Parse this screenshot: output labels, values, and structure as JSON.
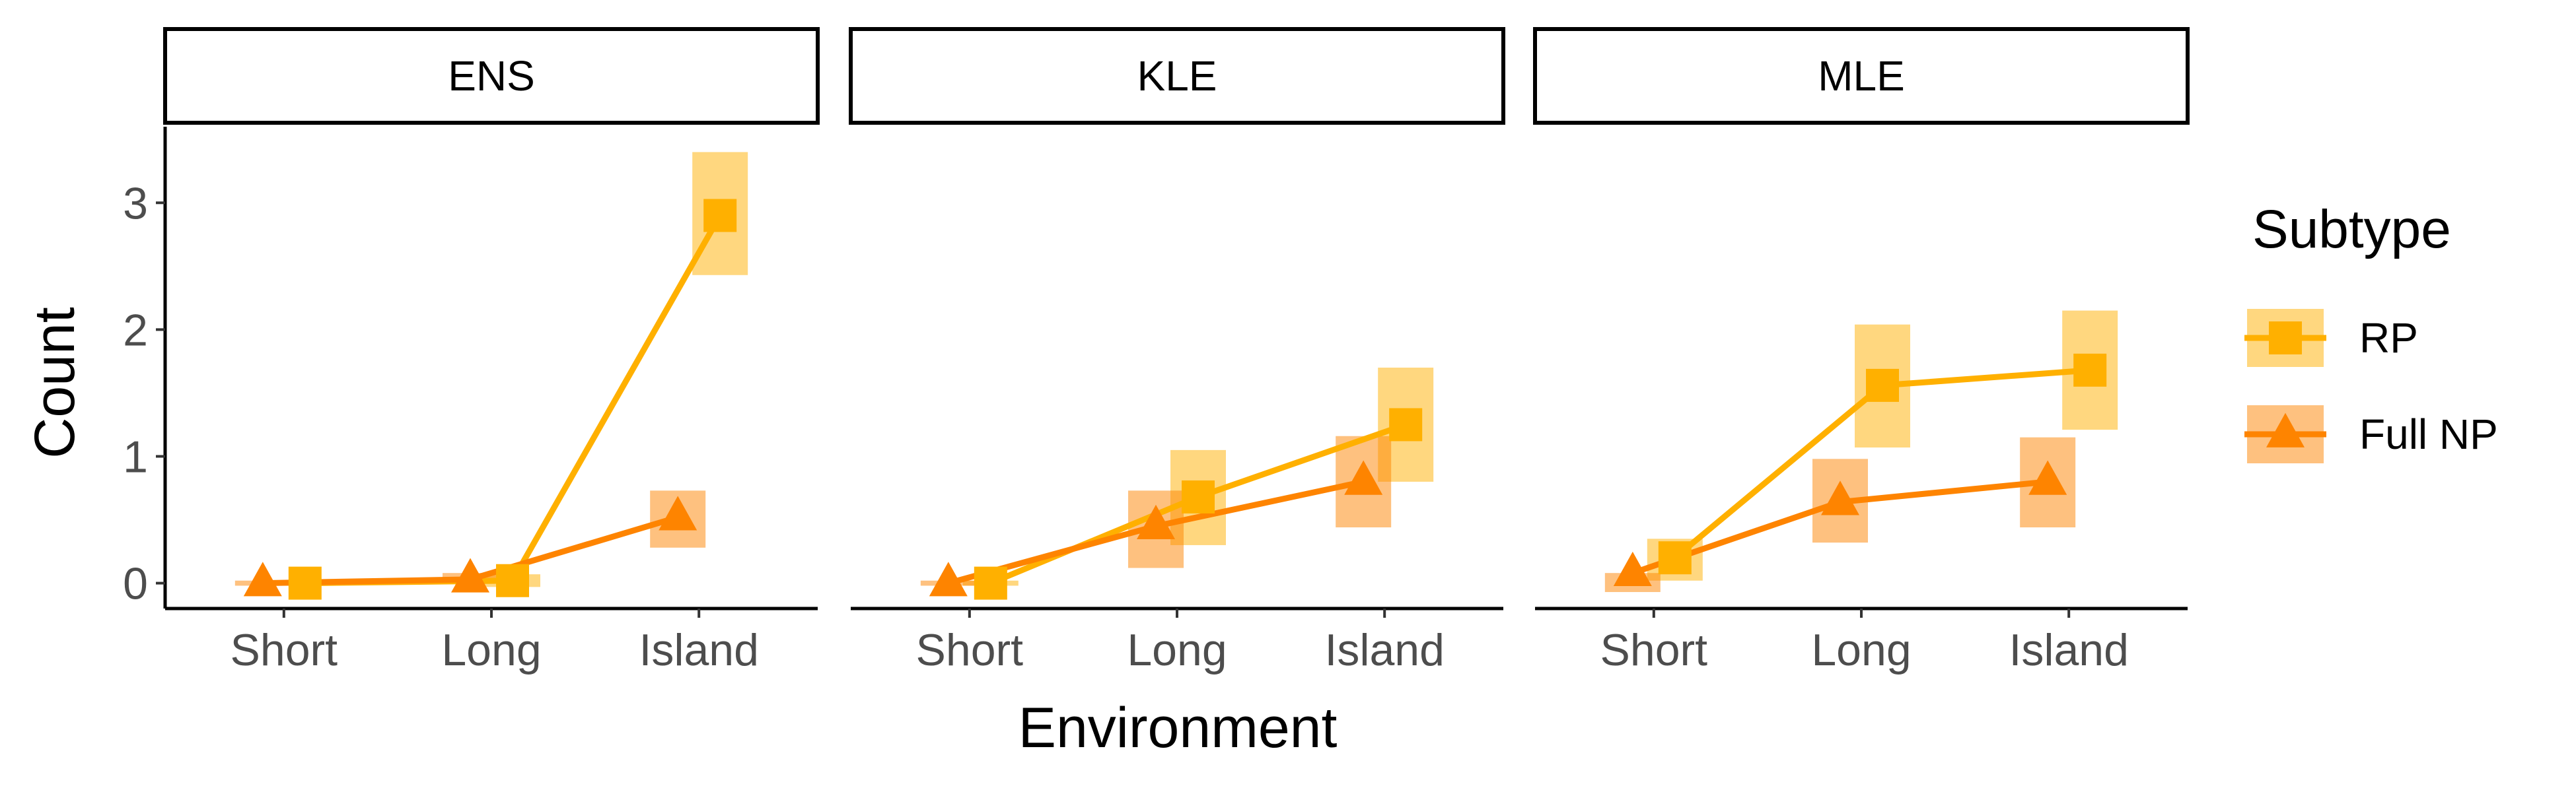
{
  "chart_data": {
    "type": "line",
    "facet_by": "Annotation",
    "panels": [
      "ENS",
      "KLE",
      "MLE"
    ],
    "categories": [
      "Short",
      "Long",
      "Island"
    ],
    "xlabel": "Environment",
    "ylabel": "Count",
    "ylim": [
      -0.2,
      3.6
    ],
    "yticks": [
      0,
      1,
      2,
      3
    ],
    "grid": false,
    "legend": {
      "title": "Subtype",
      "position": "right",
      "items": [
        "RP",
        "Full NP"
      ]
    },
    "series": [
      {
        "name": "RP",
        "color": "#FFB000",
        "marker": "square",
        "panels": {
          "ENS": {
            "values": [
              0,
              0.02,
              2.9
            ],
            "lower": [
              -0.02,
              -0.03,
              2.43
            ],
            "upper": [
              0.02,
              0.07,
              3.4
            ]
          },
          "KLE": {
            "values": [
              0,
              0.68,
              1.25
            ],
            "lower": [
              -0.02,
              0.3,
              0.8
            ],
            "upper": [
              0.02,
              1.05,
              1.7
            ]
          },
          "MLE": {
            "values": [
              0.2,
              1.56,
              1.68
            ],
            "lower": [
              0.02,
              1.07,
              1.21
            ],
            "upper": [
              0.35,
              2.04,
              2.15
            ]
          }
        }
      },
      {
        "name": "Full NP",
        "color": "#FE8400",
        "marker": "triangle",
        "panels": {
          "ENS": {
            "values": [
              0,
              0.03,
              0.52
            ],
            "lower": [
              -0.02,
              0.0,
              0.28
            ],
            "upper": [
              0.02,
              0.08,
              0.73
            ]
          },
          "KLE": {
            "values": [
              0,
              0.45,
              0.8
            ],
            "lower": [
              -0.02,
              0.12,
              0.44
            ],
            "upper": [
              0.02,
              0.73,
              1.16
            ]
          },
          "MLE": {
            "values": [
              0.08,
              0.64,
              0.8
            ],
            "lower": [
              -0.07,
              0.32,
              0.44
            ],
            "upper": [
              0.08,
              0.98,
              1.15
            ]
          }
        }
      }
    ]
  }
}
